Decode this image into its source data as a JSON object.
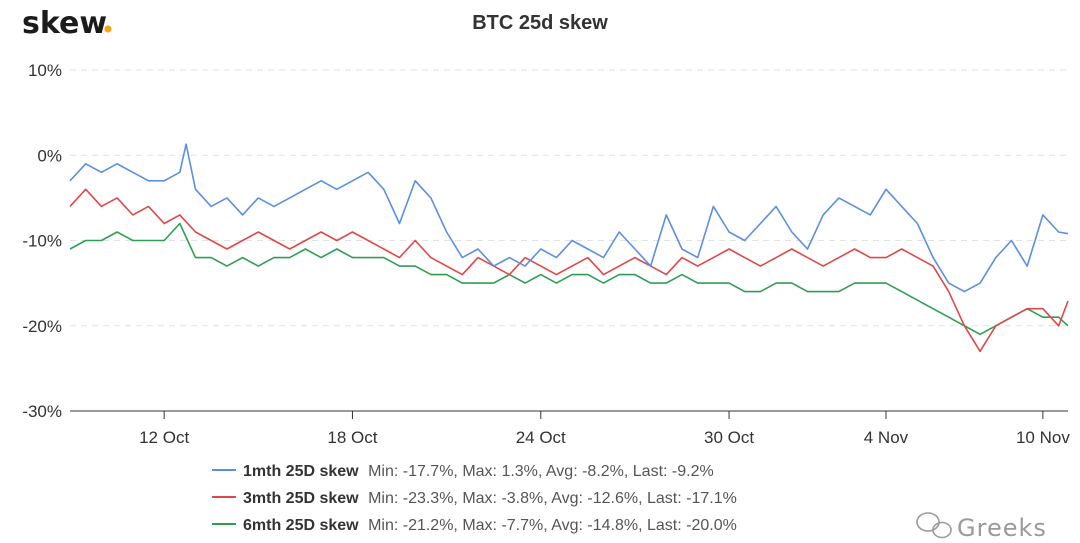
{
  "brand": {
    "logo_text": "skew",
    "logo_dot": "."
  },
  "watermark": {
    "text": "Greeks"
  },
  "chart_data": {
    "type": "line",
    "title": "BTC 25d skew",
    "xlabel": "",
    "ylabel": "",
    "ylim": [
      -30,
      10
    ],
    "ytick_values": [
      10,
      0,
      -10,
      -20,
      -30
    ],
    "ytick_labels": [
      "10%",
      "0%",
      "-10%",
      "-20%",
      "-30%"
    ],
    "xlim": [
      0,
      31.8
    ],
    "xtick_values": [
      3,
      9,
      15,
      21,
      26,
      31
    ],
    "xtick_labels": [
      "12 Oct",
      "18 Oct",
      "24 Oct",
      "30 Oct",
      "4 Nov",
      "10 Nov"
    ],
    "grid": true,
    "legend_position": "bottom",
    "series": [
      {
        "name": "1mth 25D skew",
        "stats": "Min: -17.7%, Max: 1.3%, Avg: -8.2%, Last: -9.2%",
        "color": "#5b8fe0",
        "x": [
          0,
          0.5,
          1,
          1.5,
          2,
          2.5,
          3,
          3.5,
          3.7,
          4,
          4.5,
          5,
          5.5,
          6,
          6.5,
          7,
          7.5,
          8,
          8.5,
          9,
          9.5,
          10,
          10.5,
          11,
          11.5,
          12,
          12.5,
          13,
          13.5,
          14,
          14.5,
          15,
          15.5,
          16,
          16.5,
          17,
          17.5,
          18,
          18.5,
          19,
          19.5,
          20,
          20.5,
          21,
          21.5,
          22,
          22.5,
          23,
          23.5,
          24,
          24.5,
          25,
          25.5,
          26,
          26.5,
          27,
          27.5,
          28,
          28.5,
          29,
          29.5,
          30,
          30.5,
          31,
          31.5,
          31.8
        ],
        "values": [
          -3,
          -1,
          -2,
          -1,
          -2,
          -3,
          -3,
          -2,
          1.3,
          -4,
          -6,
          -5,
          -7,
          -5,
          -6,
          -5,
          -4,
          -3,
          -4,
          -3,
          -2,
          -4,
          -8,
          -3,
          -5,
          -9,
          -12,
          -11,
          -13,
          -12,
          -13,
          -11,
          -12,
          -10,
          -11,
          -12,
          -9,
          -11,
          -13,
          -7,
          -11,
          -12,
          -6,
          -9,
          -10,
          -8,
          -6,
          -9,
          -11,
          -7,
          -5,
          -6,
          -7,
          -4,
          -6,
          -8,
          -12,
          -15,
          -16,
          -15,
          -12,
          -10,
          -13,
          -7,
          -9,
          -9.2
        ]
      },
      {
        "name": "3mth 25D skew",
        "stats": "Min: -23.3%, Max: -3.8%, Avg: -12.6%, Last: -17.1%",
        "color": "#e04848",
        "x": [
          0,
          0.5,
          1,
          1.5,
          2,
          2.5,
          3,
          3.5,
          4,
          4.5,
          5,
          5.5,
          6,
          6.5,
          7,
          7.5,
          8,
          8.5,
          9,
          9.5,
          10,
          10.5,
          11,
          11.5,
          12,
          12.5,
          13,
          13.5,
          14,
          14.5,
          15,
          15.5,
          16,
          16.5,
          17,
          17.5,
          18,
          18.5,
          19,
          19.5,
          20,
          20.5,
          21,
          21.5,
          22,
          22.5,
          23,
          23.5,
          24,
          24.5,
          25,
          25.5,
          26,
          26.5,
          27,
          27.5,
          28,
          28.5,
          29,
          29.5,
          30,
          30.5,
          31,
          31.5,
          31.8
        ],
        "values": [
          -6,
          -4,
          -6,
          -5,
          -7,
          -6,
          -8,
          -7,
          -9,
          -10,
          -11,
          -10,
          -9,
          -10,
          -11,
          -10,
          -9,
          -10,
          -9,
          -10,
          -11,
          -12,
          -10,
          -12,
          -13,
          -14,
          -12,
          -13,
          -14,
          -12,
          -13,
          -14,
          -13,
          -12,
          -14,
          -13,
          -12,
          -13,
          -14,
          -12,
          -13,
          -12,
          -11,
          -12,
          -13,
          -12,
          -11,
          -12,
          -13,
          -12,
          -11,
          -12,
          -12,
          -11,
          -12,
          -13,
          -16,
          -20,
          -23,
          -20,
          -19,
          -18,
          -18,
          -20,
          -17.1
        ]
      },
      {
        "name": "6mth 25D skew",
        "stats": "Min: -21.2%, Max: -7.7%, Avg: -14.8%, Last: -20.0%",
        "color": "#2e9e55",
        "x": [
          0,
          0.5,
          1,
          1.5,
          2,
          2.5,
          3,
          3.5,
          4,
          4.5,
          5,
          5.5,
          6,
          6.5,
          7,
          7.5,
          8,
          8.5,
          9,
          9.5,
          10,
          10.5,
          11,
          11.5,
          12,
          12.5,
          13,
          13.5,
          14,
          14.5,
          15,
          15.5,
          16,
          16.5,
          17,
          17.5,
          18,
          18.5,
          19,
          19.5,
          20,
          20.5,
          21,
          21.5,
          22,
          22.5,
          23,
          23.5,
          24,
          24.5,
          25,
          25.5,
          26,
          26.5,
          27,
          27.5,
          28,
          28.5,
          29,
          29.5,
          30,
          30.5,
          31,
          31.5,
          31.8
        ],
        "values": [
          -11,
          -10,
          -10,
          -9,
          -10,
          -10,
          -10,
          -8,
          -12,
          -12,
          -13,
          -12,
          -13,
          -12,
          -12,
          -11,
          -12,
          -11,
          -12,
          -12,
          -12,
          -13,
          -13,
          -14,
          -14,
          -15,
          -15,
          -15,
          -14,
          -15,
          -14,
          -15,
          -14,
          -14,
          -15,
          -14,
          -14,
          -15,
          -15,
          -14,
          -15,
          -15,
          -15,
          -16,
          -16,
          -15,
          -15,
          -16,
          -16,
          -16,
          -15,
          -15,
          -15,
          -16,
          -17,
          -18,
          -19,
          -20,
          -21,
          -20,
          -19,
          -18,
          -19,
          -19,
          -20
        ]
      }
    ]
  }
}
